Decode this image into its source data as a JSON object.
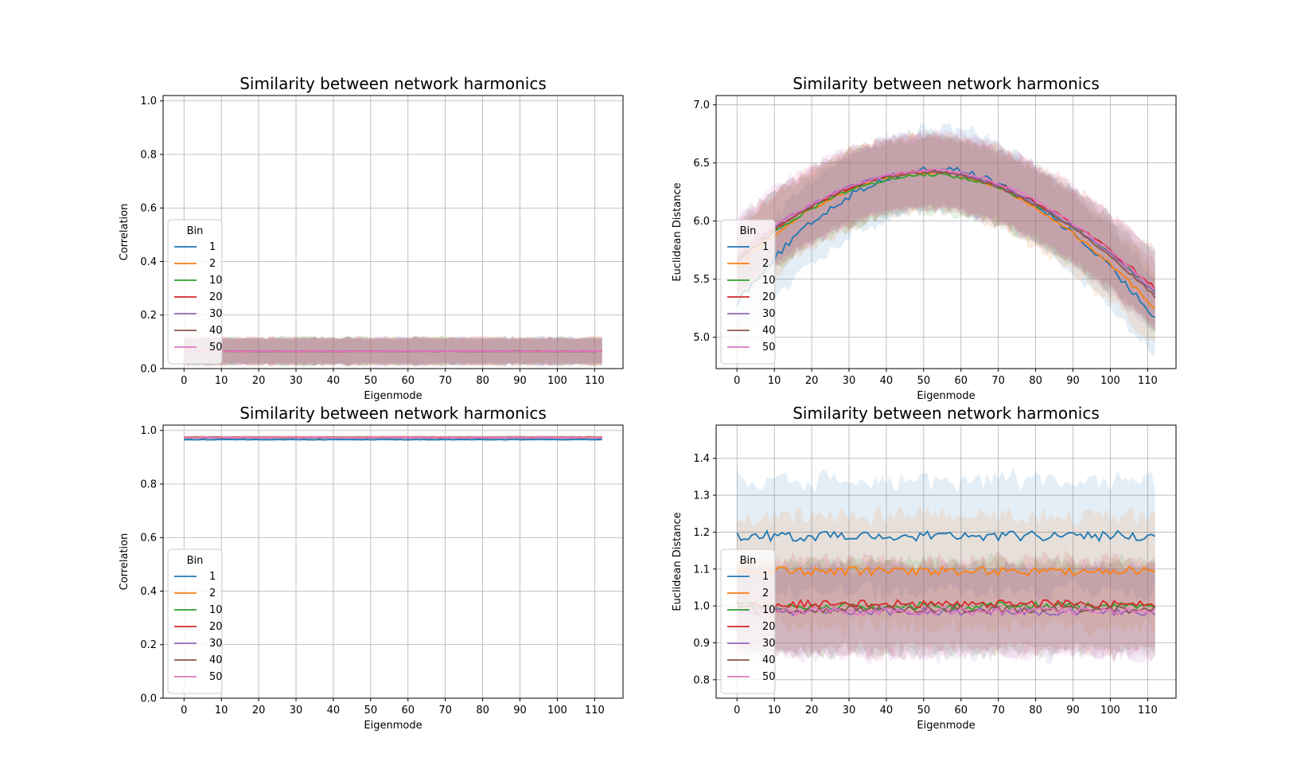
{
  "chart_data": [
    {
      "type": "line",
      "title": "Similarity between network harmonics",
      "xlabel": "Eigenmode",
      "ylabel": "Correlation",
      "xlim": [
        -5.6,
        117.6
      ],
      "ylim": [
        0.0,
        1.02
      ],
      "xticks": [
        0,
        10,
        20,
        30,
        40,
        50,
        60,
        70,
        80,
        90,
        100,
        110
      ],
      "yticks": [
        0.0,
        0.2,
        0.4,
        0.6,
        0.8,
        1.0
      ],
      "ytick_labels": [
        "0.0",
        "0.2",
        "0.4",
        "0.6",
        "0.8",
        "1.0"
      ],
      "grid": true,
      "legend": {
        "title": "Bin",
        "placement": "lower-left"
      },
      "x_range": [
        0,
        112
      ],
      "series": [
        {
          "name": "1",
          "color": "#1f77b4",
          "mean": 0.065,
          "band": 0.05,
          "noise": 0.001
        },
        {
          "name": "2",
          "color": "#ff7f0e",
          "mean": 0.065,
          "band": 0.05,
          "noise": 0.001
        },
        {
          "name": "10",
          "color": "#2ca02c",
          "mean": 0.065,
          "band": 0.05,
          "noise": 0.001
        },
        {
          "name": "20",
          "color": "#d62728",
          "mean": 0.065,
          "band": 0.05,
          "noise": 0.001
        },
        {
          "name": "30",
          "color": "#9467bd",
          "mean": 0.065,
          "band": 0.05,
          "noise": 0.001
        },
        {
          "name": "40",
          "color": "#8c564b",
          "mean": 0.065,
          "band": 0.05,
          "noise": 0.001
        },
        {
          "name": "50",
          "color": "#e377c2",
          "mean": 0.065,
          "band": 0.05,
          "noise": 0.001
        }
      ]
    },
    {
      "type": "line",
      "title": "Similarity between network harmonics",
      "xlabel": "Eigenmode",
      "ylabel": "Euclidean Distance",
      "xlim": [
        -5.6,
        117.6
      ],
      "ylim": [
        4.73,
        7.08
      ],
      "xticks": [
        0,
        10,
        20,
        30,
        40,
        50,
        60,
        70,
        80,
        90,
        100,
        110
      ],
      "yticks": [
        5.0,
        5.5,
        6.0,
        6.5,
        7.0
      ],
      "ytick_labels": [
        "5.0",
        "5.5",
        "6.0",
        "6.5",
        "7.0"
      ],
      "grid": true,
      "legend": {
        "title": "Bin",
        "placement": "lower-left"
      },
      "x_range": [
        0,
        112
      ],
      "series": [
        {
          "name": "1",
          "color": "#1f77b4",
          "start": 5.3,
          "peak": 6.45,
          "peak_x": 55,
          "end": 5.17,
          "band": 0.35,
          "noise": 0.03
        },
        {
          "name": "2",
          "color": "#ff7f0e",
          "start": 5.6,
          "peak": 6.42,
          "peak_x": 53,
          "end": 5.25,
          "band": 0.33,
          "noise": 0.015
        },
        {
          "name": "10",
          "color": "#2ca02c",
          "start": 5.65,
          "peak": 6.4,
          "peak_x": 53,
          "end": 5.4,
          "band": 0.32,
          "noise": 0.015
        },
        {
          "name": "20",
          "color": "#d62728",
          "start": 5.65,
          "peak": 6.43,
          "peak_x": 53,
          "end": 5.42,
          "band": 0.32,
          "noise": 0.015
        },
        {
          "name": "30",
          "color": "#9467bd",
          "start": 5.7,
          "peak": 6.43,
          "peak_x": 53,
          "end": 5.38,
          "band": 0.32,
          "noise": 0.012
        },
        {
          "name": "40",
          "color": "#8c564b",
          "start": 5.68,
          "peak": 6.42,
          "peak_x": 53,
          "end": 5.35,
          "band": 0.32,
          "noise": 0.012
        },
        {
          "name": "50",
          "color": "#e377c2",
          "start": 5.7,
          "peak": 6.44,
          "peak_x": 54,
          "end": 5.4,
          "band": 0.32,
          "noise": 0.012
        }
      ]
    },
    {
      "type": "line",
      "title": "Similarity between network harmonics",
      "xlabel": "Eigenmode",
      "ylabel": "Correlation",
      "xlim": [
        -5.6,
        117.6
      ],
      "ylim": [
        0.0,
        1.02
      ],
      "xticks": [
        0,
        10,
        20,
        30,
        40,
        50,
        60,
        70,
        80,
        90,
        100,
        110
      ],
      "yticks": [
        0.0,
        0.2,
        0.4,
        0.6,
        0.8,
        1.0
      ],
      "ytick_labels": [
        "0.0",
        "0.2",
        "0.4",
        "0.6",
        "0.8",
        "1.0"
      ],
      "grid": true,
      "legend": {
        "title": "Bin",
        "placement": "lower-left"
      },
      "x_range": [
        0,
        112
      ],
      "series": [
        {
          "name": "1",
          "color": "#1f77b4",
          "mean": 0.966,
          "band": 0.006,
          "noise": 0.001
        },
        {
          "name": "2",
          "color": "#ff7f0e",
          "mean": 0.975,
          "band": 0.005,
          "noise": 0.001
        },
        {
          "name": "10",
          "color": "#2ca02c",
          "mean": 0.974,
          "band": 0.005,
          "noise": 0.001
        },
        {
          "name": "20",
          "color": "#d62728",
          "mean": 0.974,
          "band": 0.005,
          "noise": 0.001
        },
        {
          "name": "30",
          "color": "#9467bd",
          "mean": 0.974,
          "band": 0.005,
          "noise": 0.001
        },
        {
          "name": "40",
          "color": "#8c564b",
          "mean": 0.974,
          "band": 0.005,
          "noise": 0.001
        },
        {
          "name": "50",
          "color": "#e377c2",
          "mean": 0.974,
          "band": 0.005,
          "noise": 0.001
        }
      ]
    },
    {
      "type": "line",
      "title": "Similarity between network harmonics",
      "xlabel": "Eigenmode",
      "ylabel": "Euclidean Distance",
      "xlim": [
        -5.6,
        117.6
      ],
      "ylim": [
        0.75,
        1.49
      ],
      "xticks": [
        0,
        10,
        20,
        30,
        40,
        50,
        60,
        70,
        80,
        90,
        100,
        110
      ],
      "yticks": [
        0.8,
        0.9,
        1.0,
        1.1,
        1.2,
        1.3,
        1.4
      ],
      "ytick_labels": [
        "0.8",
        "0.9",
        "1.0",
        "1.1",
        "1.2",
        "1.3",
        "1.4"
      ],
      "grid": true,
      "legend": {
        "title": "Bin",
        "placement": "lower-left"
      },
      "x_range": [
        0,
        112
      ],
      "series": [
        {
          "name": "1",
          "color": "#1f77b4",
          "mean": 1.19,
          "band": 0.15,
          "noise": 0.014
        },
        {
          "name": "2",
          "color": "#ff7f0e",
          "mean": 1.095,
          "band": 0.15,
          "noise": 0.012
        },
        {
          "name": "10",
          "color": "#2ca02c",
          "mean": 1.0,
          "band": 0.12,
          "noise": 0.011
        },
        {
          "name": "20",
          "color": "#d62728",
          "mean": 1.005,
          "band": 0.12,
          "noise": 0.011
        },
        {
          "name": "30",
          "color": "#9467bd",
          "mean": 0.985,
          "band": 0.12,
          "noise": 0.011
        },
        {
          "name": "40",
          "color": "#8c564b",
          "mean": 0.99,
          "band": 0.12,
          "noise": 0.011
        },
        {
          "name": "50",
          "color": "#e377c2",
          "mean": 0.985,
          "band": 0.12,
          "noise": 0.011
        }
      ]
    }
  ]
}
